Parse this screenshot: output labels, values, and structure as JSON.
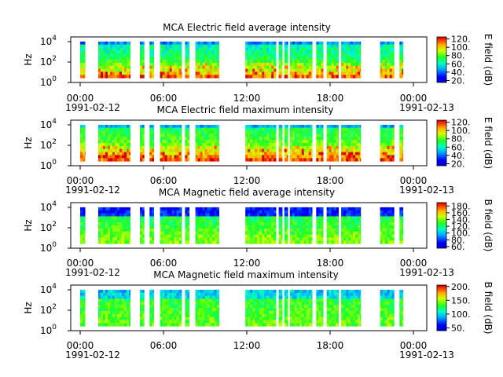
{
  "chart_data": [
    {
      "type": "heatmap",
      "title": "MCA  Electric field average intensity",
      "ylabel": "Hz",
      "y_scale": "log",
      "ylim": [
        1,
        30000
      ],
      "y_ticks": [
        "10",
        "10",
        "10"
      ],
      "y_tick_exponents": [
        "0",
        "2",
        "4"
      ],
      "x_range_hours": [
        0,
        24
      ],
      "x_ticks": [
        "00:00",
        "06:00",
        "12:00",
        "18:00",
        "00:00"
      ],
      "x_tick_dates": [
        "1991-02-12",
        "1991-02-13"
      ],
      "colorbar": {
        "label": "E field (dB)",
        "range": [
          15,
          125
        ],
        "ticks": [
          "20.",
          "40.",
          "60.",
          "80.",
          "100.",
          "120."
        ]
      },
      "data_intervals_hours": [
        [
          0.0,
          0.35
        ],
        [
          1.3,
          3.6
        ],
        [
          4.3,
          4.6
        ],
        [
          5.0,
          5.3
        ],
        [
          5.75,
          7.3
        ],
        [
          7.55,
          7.85
        ],
        [
          8.3,
          10.0
        ],
        [
          11.9,
          14.1
        ],
        [
          14.3,
          14.55
        ],
        [
          14.7,
          14.95
        ],
        [
          15.1,
          16.7
        ],
        [
          17.0,
          17.5
        ],
        [
          17.75,
          18.6
        ],
        [
          18.8,
          20.2
        ],
        [
          21.6,
          22.6
        ],
        [
          23.0,
          23.25
        ]
      ],
      "intensity_trend": "high (>90 dB) at low frequencies near 10-100 Hz, ~60 dB elsewhere"
    },
    {
      "type": "heatmap",
      "title": "MCA  Electric field maximum intensity",
      "ylabel": "Hz",
      "y_scale": "log",
      "ylim": [
        1,
        30000
      ],
      "y_ticks": [
        "10",
        "10",
        "10"
      ],
      "y_tick_exponents": [
        "0",
        "2",
        "4"
      ],
      "x_range_hours": [
        0,
        24
      ],
      "x_ticks": [
        "00:00",
        "06:00",
        "12:00",
        "18:00",
        "00:00"
      ],
      "x_tick_dates": [
        "1991-02-12",
        "1991-02-13"
      ],
      "colorbar": {
        "label": "E field (dB)",
        "range": [
          15,
          125
        ],
        "ticks": [
          "20.",
          "40.",
          "60.",
          "80.",
          "100.",
          "120."
        ]
      },
      "data_intervals_hours": [
        [
          0.0,
          0.35
        ],
        [
          1.3,
          3.6
        ],
        [
          4.3,
          4.6
        ],
        [
          5.0,
          5.3
        ],
        [
          5.75,
          7.3
        ],
        [
          7.55,
          7.85
        ],
        [
          8.3,
          10.0
        ],
        [
          11.9,
          14.1
        ],
        [
          14.3,
          14.55
        ],
        [
          14.7,
          14.95
        ],
        [
          15.1,
          16.7
        ],
        [
          17.0,
          17.5
        ],
        [
          17.75,
          18.6
        ],
        [
          18.8,
          20.2
        ],
        [
          21.6,
          22.6
        ],
        [
          23.0,
          23.25
        ]
      ],
      "intensity_trend": "high (>100 dB) at low frequencies, ~70 dB elsewhere"
    },
    {
      "type": "heatmap",
      "title": "MCA  Magnetic field average intensity",
      "ylabel": "Hz",
      "y_scale": "log",
      "ylim": [
        1,
        30000
      ],
      "y_ticks": [
        "10",
        "10",
        "10"
      ],
      "y_tick_exponents": [
        "0",
        "2",
        "4"
      ],
      "x_range_hours": [
        0,
        24
      ],
      "x_ticks": [
        "00:00",
        "06:00",
        "12:00",
        "18:00",
        "00:00"
      ],
      "x_tick_dates": [
        "1991-02-12",
        "1991-02-13"
      ],
      "colorbar": {
        "label": "B field (dB)",
        "range": [
          55,
          190
        ],
        "ticks": [
          "60.",
          "80.",
          "100.",
          "120.",
          "140.",
          "160.",
          "180."
        ]
      },
      "data_intervals_hours": [
        [
          0.0,
          0.35
        ],
        [
          1.3,
          3.6
        ],
        [
          4.3,
          4.6
        ],
        [
          5.0,
          5.3
        ],
        [
          5.75,
          7.3
        ],
        [
          7.55,
          7.85
        ],
        [
          8.3,
          10.0
        ],
        [
          11.9,
          14.1
        ],
        [
          14.3,
          14.55
        ],
        [
          14.7,
          14.95
        ],
        [
          15.1,
          16.7
        ],
        [
          17.0,
          17.5
        ],
        [
          17.75,
          18.6
        ],
        [
          18.8,
          20.2
        ],
        [
          21.6,
          22.6
        ],
        [
          23.0,
          23.25
        ]
      ],
      "intensity_trend": "low (~70 dB) above 1 kHz, ~110-120 dB at low frequencies"
    },
    {
      "type": "heatmap",
      "title": "MCA  Magnetic field maximum intensity",
      "ylabel": "Hz",
      "y_scale": "log",
      "ylim": [
        1,
        30000
      ],
      "y_ticks": [
        "10",
        "10",
        "10"
      ],
      "y_tick_exponents": [
        "0",
        "2",
        "4"
      ],
      "x_range_hours": [
        0,
        24
      ],
      "x_ticks": [
        "00:00",
        "06:00",
        "12:00",
        "18:00",
        "00:00"
      ],
      "x_tick_dates": [
        "1991-02-12",
        "1991-02-13"
      ],
      "colorbar": {
        "label": "B field (dB)",
        "range": [
          40,
          205
        ],
        "ticks": [
          "50.",
          "100.",
          "150.",
          "200."
        ]
      },
      "data_intervals_hours": [
        [
          0.0,
          0.35
        ],
        [
          1.3,
          3.6
        ],
        [
          4.3,
          4.6
        ],
        [
          5.0,
          5.3
        ],
        [
          5.75,
          7.3
        ],
        [
          7.55,
          7.85
        ],
        [
          8.3,
          10.0
        ],
        [
          11.9,
          14.1
        ],
        [
          14.3,
          14.55
        ],
        [
          14.7,
          14.95
        ],
        [
          15.1,
          16.7
        ],
        [
          17.0,
          17.5
        ],
        [
          17.75,
          18.6
        ],
        [
          18.8,
          20.2
        ],
        [
          21.6,
          22.6
        ],
        [
          23.0,
          23.25
        ]
      ],
      "intensity_trend": "~90 dB above 1 kHz, ~110-130 dB at low frequencies"
    }
  ]
}
